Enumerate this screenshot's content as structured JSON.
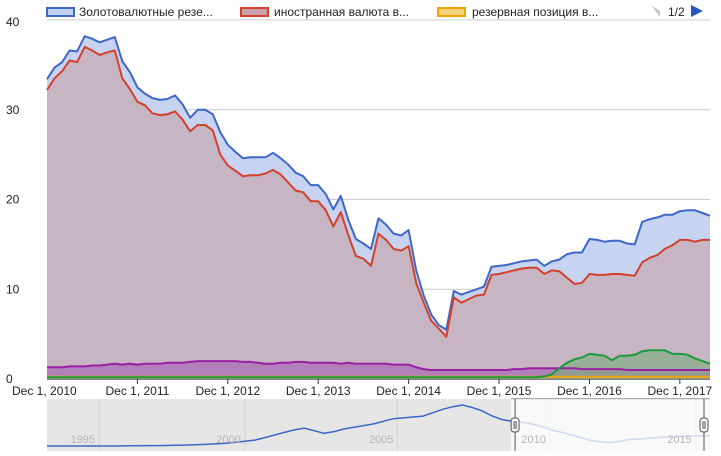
{
  "chart_data": {
    "type": "area",
    "legend_position": "top",
    "legend": {
      "page_indicator": "1/2",
      "entries": [
        {
          "label": "Золотовалютные резе...",
          "color": "#3d67c9"
        },
        {
          "label": "иностранная валюта в...",
          "color": "#d4412a"
        },
        {
          "label": "резервная позиция в...",
          "color": "#f0a30a"
        }
      ]
    },
    "ylim": [
      0,
      40
    ],
    "y_ticks": [
      "0",
      "10",
      "20",
      "30",
      "40"
    ],
    "x_ticks": [
      "Dec 1, 2010",
      "Dec 1, 2011",
      "Dec 1, 2012",
      "Dec 1, 2013",
      "Dec 1, 2014",
      "Dec 1, 2015",
      "Dec 1, 2016",
      "Dec 1, 2017"
    ],
    "x_tick_months": [
      0,
      12,
      24,
      36,
      48,
      60,
      72,
      84
    ],
    "x_range_months": [
      0,
      88
    ],
    "grid": true,
    "series": [
      {
        "name": "Золотовалютные резе...",
        "color": "#3d67c9",
        "fill": "#c3d1f0",
        "values": [
          33.4,
          34.7,
          35.3,
          36.6,
          36.5,
          38.2,
          37.9,
          37.5,
          37.8,
          38.1,
          35.4,
          34.2,
          32.5,
          31.8,
          31.3,
          31.1,
          31.2,
          31.6,
          30.6,
          29.1,
          30.0,
          30.0,
          29.5,
          27.5,
          26.1,
          25.3,
          24.6,
          24.7,
          24.7,
          24.7,
          25.2,
          24.6,
          23.9,
          23.0,
          22.6,
          21.6,
          21.6,
          20.6,
          18.9,
          20.4,
          17.7,
          15.6,
          15.1,
          14.5,
          17.9,
          17.2,
          16.2,
          16.0,
          16.6,
          12.1,
          9.3,
          7.2,
          6.0,
          5.5,
          9.8,
          9.4,
          9.7,
          10.0,
          10.3,
          12.5,
          12.6,
          12.7,
          12.9,
          13.1,
          13.2,
          13.3,
          12.6,
          13.1,
          13.3,
          13.9,
          14.1,
          14.1,
          15.6,
          15.5,
          15.3,
          15.4,
          15.4,
          15.1,
          15.0,
          17.5,
          17.8,
          18.0,
          18.3,
          18.3,
          18.7,
          18.8,
          18.8,
          18.5,
          18.2
        ]
      },
      {
        "name": "иностранная валюта в...",
        "color": "#d4412a",
        "fill": "#c9a1a7",
        "values": [
          32.2,
          33.5,
          34.3,
          35.5,
          35.3,
          37.0,
          36.6,
          36.1,
          36.4,
          36.6,
          33.5,
          32.3,
          30.9,
          30.5,
          29.6,
          29.4,
          29.5,
          29.8,
          28.9,
          27.6,
          28.3,
          28.3,
          27.7,
          25.0,
          23.8,
          23.2,
          22.6,
          22.7,
          22.7,
          22.9,
          23.3,
          22.8,
          21.9,
          21.0,
          20.8,
          19.8,
          19.8,
          18.8,
          17.0,
          18.6,
          16.0,
          13.7,
          13.4,
          12.6,
          16.2,
          15.5,
          14.5,
          14.3,
          14.8,
          10.7,
          8.5,
          6.5,
          5.6,
          4.7,
          9.1,
          8.5,
          8.9,
          9.3,
          9.4,
          11.6,
          11.7,
          11.9,
          12.1,
          12.3,
          12.4,
          12.4,
          11.7,
          12.1,
          12.0,
          11.3,
          10.6,
          10.7,
          11.7,
          11.6,
          11.6,
          11.7,
          11.7,
          11.6,
          11.5,
          13.0,
          13.5,
          13.8,
          14.5,
          14.9,
          15.5,
          15.5,
          15.3,
          15.5,
          15.5
        ]
      },
      {
        "name": "резервная позиция в...",
        "color": "#f0a30a",
        "fill": "#f5d27a",
        "values": [
          0.25,
          0.25,
          0.25,
          0.25,
          0.25,
          0.25,
          0.25,
          0.25,
          0.25,
          0.25,
          0.25,
          0.25,
          0.25,
          0.25,
          0.25,
          0.25,
          0.25,
          0.25,
          0.25,
          0.25,
          0.25,
          0.25,
          0.25,
          0.25,
          0.25,
          0.25,
          0.25,
          0.25,
          0.25,
          0.25,
          0.25,
          0.25,
          0.25,
          0.25,
          0.25,
          0.25,
          0.25,
          0.25,
          0.25,
          0.25,
          0.25,
          0.25,
          0.25,
          0.25,
          0.25,
          0.25,
          0.25,
          0.25,
          0.25,
          0.25,
          0.25,
          0.25,
          0.25,
          0.25,
          0.25,
          0.25,
          0.25,
          0.25,
          0.25,
          0.25,
          0.25,
          0.25,
          0.25,
          0.25,
          0.25,
          0.25,
          0.25,
          0.25,
          0.25,
          0.25,
          0.25,
          0.25,
          0.25,
          0.25,
          0.25,
          0.25,
          0.25,
          0.25,
          0.25,
          0.25,
          0.25,
          0.25,
          0.25,
          0.25,
          0.25,
          0.25,
          0.25,
          0.25,
          0.25
        ]
      },
      {
        "color": "#9b1fa5",
        "fill": "#a55bb3",
        "values": [
          1.3,
          1.3,
          1.3,
          1.4,
          1.4,
          1.4,
          1.5,
          1.5,
          1.6,
          1.7,
          1.6,
          1.7,
          1.6,
          1.7,
          1.7,
          1.7,
          1.8,
          1.8,
          1.8,
          1.9,
          2.0,
          2.0,
          2.0,
          2.0,
          2.0,
          2.0,
          1.9,
          1.9,
          1.8,
          1.7,
          1.7,
          1.8,
          1.8,
          1.9,
          1.9,
          1.8,
          1.8,
          1.8,
          1.8,
          1.7,
          1.8,
          1.7,
          1.7,
          1.7,
          1.7,
          1.7,
          1.6,
          1.6,
          1.6,
          1.3,
          1.1,
          1.0,
          1.0,
          1.0,
          1.0,
          1.0,
          1.0,
          1.0,
          1.0,
          1.0,
          1.0,
          1.0,
          1.1,
          1.1,
          1.2,
          1.2,
          1.2,
          1.2,
          1.2,
          1.2,
          1.2,
          1.1,
          1.1,
          1.1,
          1.1,
          1.1,
          1.1,
          1.0,
          1.0,
          1.0,
          1.0,
          1.0,
          1.0,
          1.0,
          1.0,
          1.0,
          1.0,
          1.0,
          1.0
        ]
      },
      {
        "color": "#1e9a3e",
        "fill": "#7aad7c",
        "values": [
          0.2,
          0.2,
          0.2,
          0.2,
          0.2,
          0.2,
          0.2,
          0.2,
          0.2,
          0.2,
          0.2,
          0.2,
          0.2,
          0.2,
          0.2,
          0.2,
          0.2,
          0.2,
          0.2,
          0.2,
          0.2,
          0.2,
          0.2,
          0.2,
          0.2,
          0.2,
          0.2,
          0.2,
          0.2,
          0.2,
          0.2,
          0.2,
          0.2,
          0.2,
          0.2,
          0.2,
          0.2,
          0.2,
          0.2,
          0.2,
          0.2,
          0.2,
          0.2,
          0.2,
          0.2,
          0.2,
          0.2,
          0.2,
          0.2,
          0.2,
          0.2,
          0.2,
          0.2,
          0.2,
          0.2,
          0.2,
          0.2,
          0.2,
          0.2,
          0.2,
          0.2,
          0.2,
          0.2,
          0.2,
          0.2,
          0.2,
          0.3,
          0.5,
          1.2,
          1.8,
          2.2,
          2.4,
          2.8,
          2.7,
          2.6,
          2.1,
          2.6,
          2.6,
          2.7,
          3.1,
          3.2,
          3.2,
          3.2,
          2.8,
          2.8,
          2.7,
          2.3,
          2.0,
          1.7
        ]
      }
    ]
  },
  "navigator": {
    "year_labels": [
      "1995",
      "2000",
      "2005",
      "2010",
      "2015"
    ],
    "year_positions_fraction": [
      0.0,
      0.22,
      0.45,
      0.68,
      0.9
    ],
    "window_start_fraction": 0.7,
    "window_end_fraction": 1.0,
    "overview_values": [
      0.6,
      0.6,
      0.6,
      0.6,
      0.6,
      0.6,
      0.6,
      0.6,
      0.7,
      0.7,
      0.8,
      0.8,
      0.9,
      1.0,
      1.1,
      1.3,
      1.5,
      1.8,
      2.2,
      2.7,
      3.3,
      4.0,
      5.5,
      7.0,
      8.5,
      10.0,
      11.0,
      9.5,
      8.0,
      9.0,
      10.5,
      11.5,
      12.5,
      13.5,
      15.0,
      16.5,
      17.0,
      17.5,
      18.0,
      20.0,
      22.0,
      23.5,
      24.5,
      23.0,
      21.0,
      18.0,
      16.0,
      15.0,
      14.5,
      13.5,
      12.0,
      10.0,
      8.5,
      7.0,
      5.5,
      3.8,
      3.0,
      2.5,
      3.5,
      4.5,
      4.8,
      5.2,
      5.6,
      6.0,
      6.2,
      6.3,
      6.5,
      6.5
    ]
  }
}
